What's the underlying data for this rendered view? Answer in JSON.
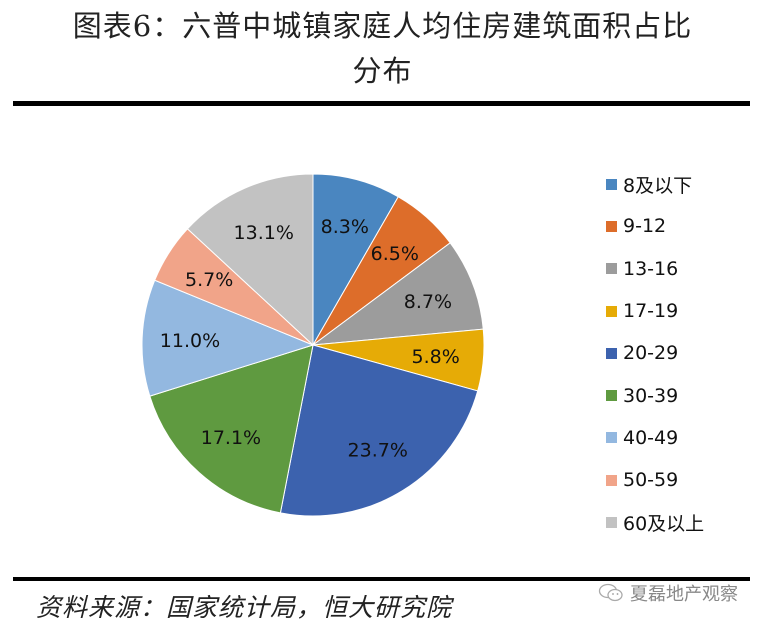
{
  "title": {
    "line1": "图表6：六普中城镇家庭人均住房建筑面积占比",
    "line2": "分布"
  },
  "chart_data": {
    "type": "pie",
    "title": "图表6：六普中城镇家庭人均住房建筑面积占比分布",
    "categories": [
      "8及以下",
      "9-12",
      "13-16",
      "17-19",
      "20-29",
      "30-39",
      "40-49",
      "50-59",
      "60及以上"
    ],
    "values": [
      8.3,
      6.5,
      8.7,
      5.8,
      23.7,
      17.1,
      11.0,
      5.7,
      13.1
    ],
    "labels": [
      "8.3%",
      "6.5%",
      "8.7%",
      "5.8%",
      "23.7%",
      "17.1%",
      "11.0%",
      "5.7%",
      "13.1%"
    ],
    "colors": [
      "#4a86c0",
      "#dd6d2a",
      "#9c9c9c",
      "#e6ab06",
      "#3c62ae",
      "#5f9a40",
      "#93b8e0",
      "#f1a489",
      "#c2c2c2"
    ],
    "start_angle": "12 o'clock, clockwise",
    "legend_position": "right",
    "unit": "%"
  },
  "legend": {
    "items": [
      {
        "label": "8及以下",
        "color": "#4a86c0"
      },
      {
        "label": "9-12",
        "color": "#dd6d2a"
      },
      {
        "label": "13-16",
        "color": "#9c9c9c"
      },
      {
        "label": "17-19",
        "color": "#e6ab06"
      },
      {
        "label": "20-29",
        "color": "#3c62ae"
      },
      {
        "label": "30-39",
        "color": "#5f9a40"
      },
      {
        "label": "40-49",
        "color": "#93b8e0"
      },
      {
        "label": "50-59",
        "color": "#f1a489"
      },
      {
        "label": "60及以上",
        "color": "#c2c2c2"
      }
    ]
  },
  "footer": {
    "source": "资料来源：国家统计局，恒大研究院",
    "watermark": "夏磊地产观察",
    "watermark_icon": "wechat-icon"
  }
}
